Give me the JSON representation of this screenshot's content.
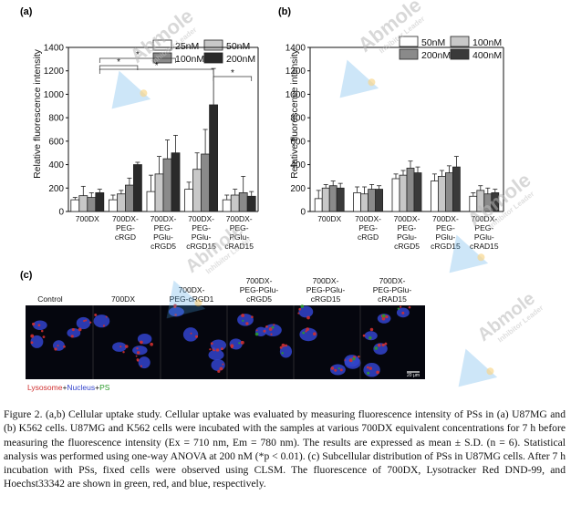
{
  "panel_labels": {
    "a": "(a)",
    "b": "(b)",
    "c": "(c)"
  },
  "chart_data": [
    {
      "type": "bar",
      "panel": "a",
      "ylabel": "Relative fluorescence intensity",
      "ylim": [
        0,
        1400
      ],
      "yticks": [
        0,
        200,
        400,
        600,
        800,
        1000,
        1200,
        1400
      ],
      "categories": [
        [
          "700DX"
        ],
        [
          "700DX-",
          "PEG-",
          "cRGD"
        ],
        [
          "700DX-",
          "PEG-",
          "PGlu-",
          "cRGD5"
        ],
        [
          "700DX-",
          "PEG-",
          "PGlu-",
          "cRGD15"
        ],
        [
          "700DX-",
          "PEG-",
          "PGlu-",
          "cRAD15"
        ]
      ],
      "legend_position": "top-right",
      "series": [
        {
          "name": "25nM",
          "color": "#ffffff",
          "values": [
            100,
            100,
            170,
            190,
            100
          ],
          "errors": [
            20,
            40,
            140,
            60,
            40
          ]
        },
        {
          "name": "50nM",
          "color": "#c8c8c8",
          "values": [
            135,
            150,
            320,
            360,
            140
          ],
          "errors": [
            80,
            30,
            150,
            140,
            50
          ]
        },
        {
          "name": "100nM",
          "color": "#8a8a8a",
          "values": [
            120,
            225,
            450,
            490,
            160
          ],
          "errors": [
            40,
            60,
            160,
            210,
            140
          ]
        },
        {
          "name": "200nM",
          "color": "#2a2a2a",
          "values": [
            160,
            400,
            500,
            910,
            130
          ],
          "errors": [
            30,
            20,
            150,
            310,
            40
          ]
        }
      ],
      "annotations": [
        "*",
        "*",
        "*",
        "*"
      ]
    },
    {
      "type": "bar",
      "panel": "b",
      "ylabel": "Relative fluorescence intensity",
      "ylim": [
        0,
        1400
      ],
      "yticks": [
        0,
        200,
        400,
        600,
        800,
        1000,
        1200,
        1400
      ],
      "categories": [
        [
          "700DX"
        ],
        [
          "700DX-",
          "PEG-",
          "cRGD"
        ],
        [
          "700DX-",
          "PEG-",
          "PGlu-",
          "cRGD5"
        ],
        [
          "700DX-",
          "PEG-",
          "PGlu-",
          "cRGD15"
        ],
        [
          "700DX-",
          "PEG-",
          "PGlu-",
          "cRAD15"
        ]
      ],
      "legend_position": "top-right",
      "series": [
        {
          "name": "50nM",
          "color": "#ffffff",
          "values": [
            110,
            160,
            280,
            260,
            130
          ],
          "errors": [
            70,
            50,
            40,
            60,
            30
          ]
        },
        {
          "name": "100nM",
          "color": "#c8c8c8",
          "values": [
            200,
            150,
            310,
            300,
            180
          ],
          "errors": [
            30,
            60,
            40,
            50,
            40
          ]
        },
        {
          "name": "200nM",
          "color": "#8a8a8a",
          "values": [
            220,
            190,
            370,
            330,
            150
          ],
          "errors": [
            40,
            40,
            60,
            60,
            50
          ]
        },
        {
          "name": "400nM",
          "color": "#3a3a3a",
          "values": [
            200,
            190,
            330,
            380,
            160
          ],
          "errors": [
            40,
            30,
            50,
            90,
            30
          ]
        }
      ]
    }
  ],
  "panel_c": {
    "labels": [
      [
        "Control"
      ],
      [
        "700DX"
      ],
      [
        "700DX-",
        "PEG-cRGD1"
      ],
      [
        "700DX-",
        "PEG-PGlu-",
        "cRGD5"
      ],
      [
        "700DX-",
        "PEG-PGlu-",
        "cRGD15"
      ],
      [
        "700DX-",
        "PEG-PGlu-",
        "cRAD15"
      ]
    ],
    "stain_legend": {
      "lysosome": "Lysosome",
      "plus1": "+",
      "nucleus": "Nucleus",
      "plus2": "+",
      "ps": "PS"
    },
    "scale_bar": "20 μm",
    "colors": {
      "lysosome": "#d03030",
      "nucleus": "#3344cc",
      "ps": "#2a9a2a",
      "background": "#05060e"
    }
  },
  "watermark": {
    "brand": "Abmole",
    "sub": "Inhibitor Leader"
  },
  "caption": "Figure 2. (a,b) Cellular uptake study. Cellular uptake was evaluated by measuring fluorescence intensity of PSs in (a) U87MG and (b) K562 cells. U87MG and K562 cells were incubated with the samples at various 700DX equivalent concentrations for 7 h before measuring the fluorescence intensity (Ex = 710 nm, Em = 780 nm). The results are expressed as mean ± S.D. (n = 6). Statistical analysis was performed using one-way ANOVA at 200 nM (*p < 0.01). (c) Subcellular distribution of PSs in U87MG cells. After 7 h incubation with PSs, fixed cells were observed using CLSM. The fluorescence of 700DX, Lysotracker Red DND-99, and Hoechst33342 are shown in green, red, and blue, respectively."
}
